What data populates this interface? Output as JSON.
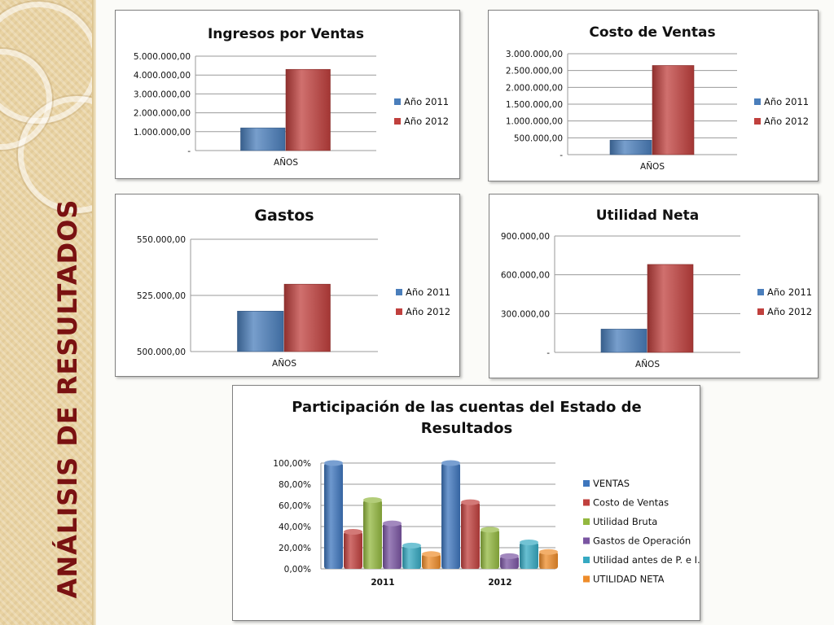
{
  "slide": {
    "title": "ANÁLISIS DE RESULTADOS"
  },
  "colors": {
    "year_2011": "#4a7ebb",
    "year_2012": "#c0403d",
    "ventas": "#3e76bd",
    "costo": "#c0403d",
    "utilidad_bruta": "#93b83f",
    "gastos_operacion": "#7a55a2",
    "utilidad_antes": "#36a9c2",
    "utilidad_neta": "#ee8c2a",
    "title_accent": "#7a1212"
  },
  "chart_data": [
    {
      "id": "ingresos",
      "type": "bar",
      "title": "Ingresos por Ventas",
      "categories": [
        "AÑOS"
      ],
      "series": [
        {
          "name": "Año 2011",
          "values": [
            1200000
          ]
        },
        {
          "name": "Año 2012",
          "values": [
            4300000
          ]
        }
      ],
      "ylim": [
        0,
        5000000
      ],
      "yticks": [
        "-",
        "1.000.000,00",
        "2.000.000,00",
        "3.000.000,00",
        "4.000.000,00",
        "5.000.000,00"
      ],
      "grid": true,
      "legend": "right"
    },
    {
      "id": "costo",
      "type": "bar",
      "title": "Costo de Ventas",
      "categories": [
        "AÑOS"
      ],
      "series": [
        {
          "name": "Año 2011",
          "values": [
            430000
          ]
        },
        {
          "name": "Año 2012",
          "values": [
            2650000
          ]
        }
      ],
      "ylim": [
        0,
        3000000
      ],
      "yticks": [
        "-",
        "500.000,00",
        "1.000.000,00",
        "1.500.000,00",
        "2.000.000,00",
        "2.500.000,00",
        "3.000.000,00"
      ],
      "grid": true,
      "legend": "right"
    },
    {
      "id": "gastos",
      "type": "bar",
      "title": "Gastos",
      "categories": [
        "AÑOS"
      ],
      "series": [
        {
          "name": "Año 2011",
          "values": [
            518000
          ]
        },
        {
          "name": "Año 2012",
          "values": [
            530000
          ]
        }
      ],
      "ylim": [
        500000,
        550000
      ],
      "yticks": [
        "500.000,00",
        "525.000,00",
        "550.000,00"
      ],
      "grid": true,
      "legend": "right"
    },
    {
      "id": "utilidad",
      "type": "bar",
      "title": "Utilidad Neta",
      "categories": [
        "AÑOS"
      ],
      "series": [
        {
          "name": "Año 2011",
          "values": [
            180000
          ]
        },
        {
          "name": "Año 2012",
          "values": [
            680000
          ]
        }
      ],
      "ylim": [
        0,
        900000
      ],
      "yticks": [
        "-",
        "300.000,00",
        "600.000,00",
        "900.000,00"
      ],
      "grid": true,
      "legend": "right"
    },
    {
      "id": "participacion",
      "type": "bar",
      "title": "Participación de las cuentas del Estado de Resultados",
      "categories": [
        "2011",
        "2012"
      ],
      "series": [
        {
          "name": "VENTAS",
          "values": [
            100,
            100
          ]
        },
        {
          "name": "Costo de Ventas",
          "values": [
            35,
            63
          ]
        },
        {
          "name": "Utilidad Bruta",
          "values": [
            65,
            37
          ]
        },
        {
          "name": "Gastos de Operación",
          "values": [
            43,
            12
          ]
        },
        {
          "name": "Utilidad antes de P. e I.",
          "values": [
            22,
            25
          ]
        },
        {
          "name": "UTILIDAD NETA",
          "values": [
            14,
            16
          ]
        }
      ],
      "ylim": [
        0,
        100
      ],
      "yticks": [
        "0,00%",
        "20,00%",
        "40,00%",
        "60,00%",
        "80,00%",
        "100,00%"
      ],
      "grid": true,
      "legend": "right"
    }
  ]
}
